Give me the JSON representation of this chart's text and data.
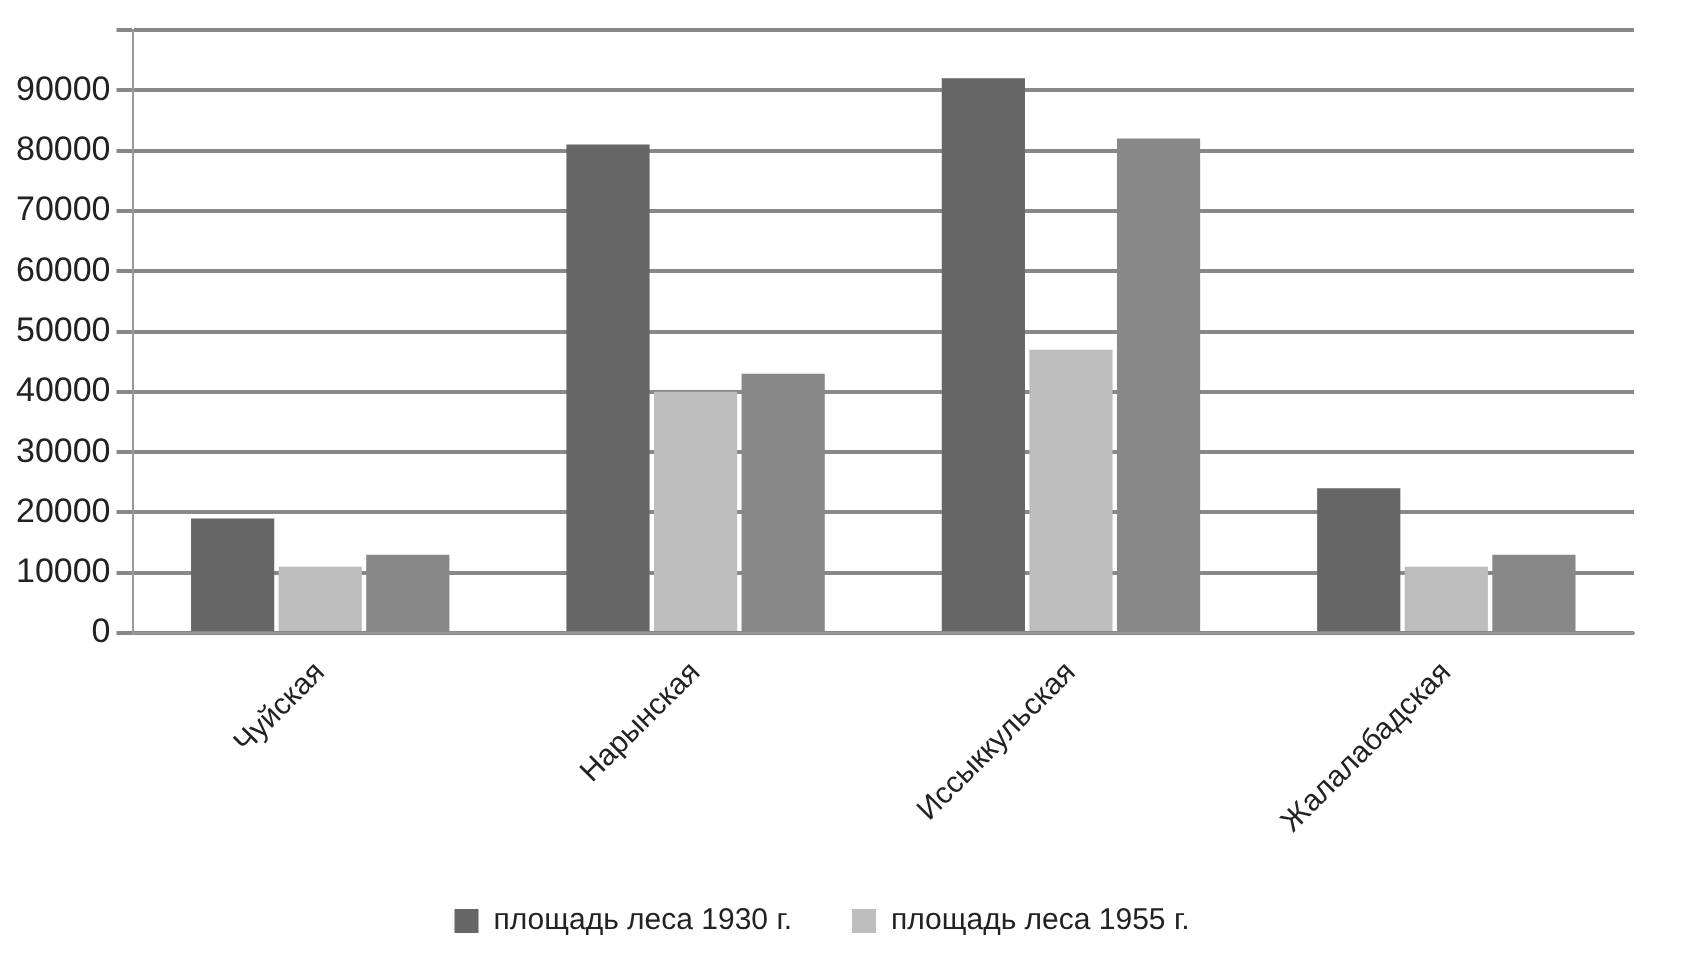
{
  "chart_data": {
    "type": "bar",
    "categories": [
      "Чуйская",
      "Нарынская",
      "Иссыккульская",
      "Жалалабадская"
    ],
    "series": [
      {
        "name": "площадь леса 1930 г.",
        "color": "#666666",
        "values": [
          19000,
          81000,
          92000,
          24000
        ]
      },
      {
        "name": "площадь леса 1955 г.",
        "color": "#bdbdbd",
        "values": [
          11000,
          40000,
          47000,
          11000
        ]
      },
      {
        "color": "#888888",
        "values": [
          13000,
          43000,
          82000,
          13000
        ]
      }
    ],
    "ylim": [
      0,
      100000
    ],
    "yticks": [
      0,
      10000,
      20000,
      30000,
      40000,
      50000,
      60000,
      70000,
      80000,
      90000,
      {
        "value": 100000,
        "label": null
      }
    ],
    "grid": "y",
    "legend": "bottom"
  }
}
